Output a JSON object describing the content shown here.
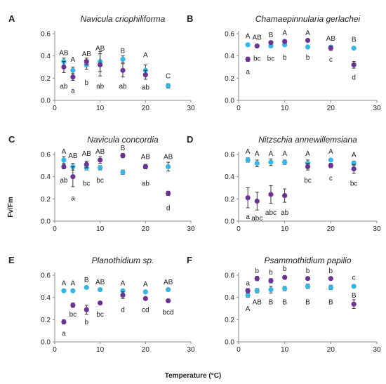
{
  "figure": {
    "y_label": "Fv/Fm",
    "x_label": "Temperature (°C)",
    "colors": {
      "blue": "#35b6e4",
      "purple": "#6a3394",
      "axis": "#888888",
      "text": "#222222"
    }
  },
  "chart_data": [
    {
      "letter": "A",
      "title": "Navicula criophiliforma",
      "type": "scatter",
      "xlim": [
        0,
        30
      ],
      "ylim": [
        0,
        0.6
      ],
      "xticks": [
        "0",
        "10",
        "20",
        "30"
      ],
      "yticks": [
        "0.0",
        "0.2",
        "0.4",
        "0.6"
      ],
      "series": [
        {
          "color": "blue",
          "points": [
            {
              "x": 2,
              "y": 0.35,
              "err": 0.03
            },
            {
              "x": 4,
              "y": 0.27,
              "err": 0.03
            },
            {
              "x": 7,
              "y": 0.32,
              "err": 0.04
            },
            {
              "x": 10,
              "y": 0.35,
              "err": 0.09
            },
            {
              "x": 15,
              "y": 0.37,
              "err": 0.03
            },
            {
              "x": 20,
              "y": 0.27,
              "err": 0.05
            },
            {
              "x": 25,
              "y": 0.13,
              "err": 0.02
            }
          ]
        },
        {
          "color": "purple",
          "points": [
            {
              "x": 2,
              "y": 0.3,
              "err": 0.05
            },
            {
              "x": 4,
              "y": 0.21,
              "err": 0.03
            },
            {
              "x": 7,
              "y": 0.35,
              "err": 0.03
            },
            {
              "x": 10,
              "y": 0.32,
              "err": 0.1
            },
            {
              "x": 15,
              "y": 0.27,
              "err": 0.06
            },
            {
              "x": 20,
              "y": 0.23,
              "err": 0.04
            }
          ]
        }
      ],
      "labels": [
        {
          "x": 2,
          "y": 0.43,
          "text": "AB"
        },
        {
          "x": 4,
          "y": 0.37,
          "text": "A"
        },
        {
          "x": 7,
          "y": 0.42,
          "text": "AB"
        },
        {
          "x": 10,
          "y": 0.47,
          "text": "AB"
        },
        {
          "x": 15,
          "y": 0.45,
          "text": "B"
        },
        {
          "x": 20,
          "y": 0.41,
          "text": "A"
        },
        {
          "x": 25,
          "y": 0.22,
          "text": "C"
        },
        {
          "x": 2,
          "y": 0.13,
          "text": "ab"
        },
        {
          "x": 4,
          "y": 0.09,
          "text": "a"
        },
        {
          "x": 7,
          "y": 0.16,
          "text": "b"
        },
        {
          "x": 10,
          "y": 0.13,
          "text": "ab"
        },
        {
          "x": 15,
          "y": 0.13,
          "text": "ab"
        },
        {
          "x": 20,
          "y": 0.12,
          "text": "ab"
        }
      ]
    },
    {
      "letter": "B",
      "title": "Chamaepinnularia gerlachei",
      "type": "scatter",
      "xlim": [
        0,
        30
      ],
      "ylim": [
        0,
        0.6
      ],
      "xticks": [
        "0",
        "10",
        "20",
        "30"
      ],
      "yticks": [
        "0.0",
        "0.2",
        "0.4",
        "0.6"
      ],
      "series": [
        {
          "color": "blue",
          "points": [
            {
              "x": 2,
              "y": 0.5,
              "err": 0.01
            },
            {
              "x": 4,
              "y": 0.49,
              "err": 0.01
            },
            {
              "x": 7,
              "y": 0.49,
              "err": 0.01
            },
            {
              "x": 10,
              "y": 0.5,
              "err": 0.01
            },
            {
              "x": 15,
              "y": 0.48,
              "err": 0.01
            },
            {
              "x": 20,
              "y": 0.48,
              "err": 0.01
            },
            {
              "x": 25,
              "y": 0.47,
              "err": 0.01
            }
          ]
        },
        {
          "color": "purple",
          "points": [
            {
              "x": 2,
              "y": 0.37,
              "err": 0.02
            },
            {
              "x": 4,
              "y": 0.49,
              "err": 0.01
            },
            {
              "x": 7,
              "y": 0.52,
              "err": 0.01
            },
            {
              "x": 10,
              "y": 0.53,
              "err": 0.01
            },
            {
              "x": 15,
              "y": 0.54,
              "err": 0.01
            },
            {
              "x": 20,
              "y": 0.47,
              "err": 0.02
            },
            {
              "x": 25,
              "y": 0.32,
              "err": 0.03
            }
          ]
        }
      ],
      "labels": [
        {
          "x": 2,
          "y": 0.58,
          "text": "A"
        },
        {
          "x": 4,
          "y": 0.57,
          "text": "AB"
        },
        {
          "x": 7,
          "y": 0.59,
          "text": "B"
        },
        {
          "x": 10,
          "y": 0.61,
          "text": "A"
        },
        {
          "x": 15,
          "y": 0.61,
          "text": "A"
        },
        {
          "x": 20,
          "y": 0.56,
          "text": "AB"
        },
        {
          "x": 25,
          "y": 0.55,
          "text": "B"
        },
        {
          "x": 2,
          "y": 0.26,
          "text": "a"
        },
        {
          "x": 4,
          "y": 0.38,
          "text": "bc"
        },
        {
          "x": 7,
          "y": 0.38,
          "text": "bc"
        },
        {
          "x": 10,
          "y": 0.39,
          "text": "b"
        },
        {
          "x": 15,
          "y": 0.39,
          "text": "b"
        },
        {
          "x": 20,
          "y": 0.37,
          "text": "c"
        },
        {
          "x": 25,
          "y": 0.21,
          "text": "d"
        }
      ]
    },
    {
      "letter": "C",
      "title": "Navicula concordia",
      "type": "scatter",
      "xlim": [
        0,
        30
      ],
      "ylim": [
        0,
        0.6
      ],
      "xticks": [
        "0",
        "10",
        "20",
        "30"
      ],
      "yticks": [
        "0.0",
        "0.2",
        "0.4",
        "0.6"
      ],
      "series": [
        {
          "color": "blue",
          "points": [
            {
              "x": 2,
              "y": 0.55,
              "err": 0.03
            },
            {
              "x": 4,
              "y": 0.49,
              "err": 0.03
            },
            {
              "x": 7,
              "y": 0.48,
              "err": 0.02
            },
            {
              "x": 10,
              "y": 0.48,
              "err": 0.02
            },
            {
              "x": 15,
              "y": 0.44,
              "err": 0.02
            },
            {
              "x": 20,
              "y": 0.49,
              "err": 0.02
            },
            {
              "x": 25,
              "y": 0.49,
              "err": 0.04
            }
          ]
        },
        {
          "color": "purple",
          "points": [
            {
              "x": 2,
              "y": 0.49,
              "err": 0.02
            },
            {
              "x": 4,
              "y": 0.4,
              "err": 0.09
            },
            {
              "x": 7,
              "y": 0.51,
              "err": 0.03
            },
            {
              "x": 10,
              "y": 0.55,
              "err": 0.03
            },
            {
              "x": 15,
              "y": 0.59,
              "err": 0.02
            },
            {
              "x": 20,
              "y": 0.49,
              "err": 0.02
            },
            {
              "x": 25,
              "y": 0.25,
              "err": 0.02
            }
          ]
        }
      ],
      "labels": [
        {
          "x": 2,
          "y": 0.63,
          "text": "A"
        },
        {
          "x": 4,
          "y": 0.59,
          "text": "AB"
        },
        {
          "x": 7,
          "y": 0.61,
          "text": "AB"
        },
        {
          "x": 10,
          "y": 0.63,
          "text": "AB"
        },
        {
          "x": 15,
          "y": 0.66,
          "text": "B"
        },
        {
          "x": 20,
          "y": 0.58,
          "text": "AB"
        },
        {
          "x": 25,
          "y": 0.58,
          "text": "AB"
        },
        {
          "x": 2,
          "y": 0.37,
          "text": "ab"
        },
        {
          "x": 4,
          "y": 0.21,
          "text": "a"
        },
        {
          "x": 7,
          "y": 0.34,
          "text": "bc"
        },
        {
          "x": 10,
          "y": 0.37,
          "text": "bc"
        },
        {
          "x": 20,
          "y": 0.34,
          "text": "ab"
        },
        {
          "x": 25,
          "y": 0.12,
          "text": "d"
        }
      ]
    },
    {
      "letter": "D",
      "title": "Nitzschia annewillemsiana",
      "type": "scatter",
      "xlim": [
        0,
        30
      ],
      "ylim": [
        0,
        0.6
      ],
      "xticks": [
        "0",
        "10",
        "20",
        "30"
      ],
      "yticks": [
        "0.0",
        "0.2",
        "0.4",
        "0.6"
      ],
      "series": [
        {
          "color": "blue",
          "points": [
            {
              "x": 2,
              "y": 0.55,
              "err": 0.02
            },
            {
              "x": 4,
              "y": 0.52,
              "err": 0.03
            },
            {
              "x": 7,
              "y": 0.53,
              "err": 0.03
            },
            {
              "x": 10,
              "y": 0.53,
              "err": 0.02
            },
            {
              "x": 15,
              "y": 0.52,
              "err": 0.03
            },
            {
              "x": 20,
              "y": 0.55,
              "err": 0.01
            },
            {
              "x": 25,
              "y": 0.52,
              "err": 0.02
            }
          ]
        },
        {
          "color": "purple",
          "points": [
            {
              "x": 2,
              "y": 0.21,
              "err": 0.09
            },
            {
              "x": 4,
              "y": 0.18,
              "err": 0.08
            },
            {
              "x": 7,
              "y": 0.24,
              "err": 0.08
            },
            {
              "x": 10,
              "y": 0.23,
              "err": 0.06
            },
            {
              "x": 15,
              "y": 0.49,
              "err": 0.03
            },
            {
              "x": 20,
              "y": 0.5,
              "err": 0.02
            },
            {
              "x": 25,
              "y": 0.47,
              "err": 0.04
            }
          ]
        }
      ],
      "labels": [
        {
          "x": 2,
          "y": 0.63,
          "text": "A"
        },
        {
          "x": 4,
          "y": 0.61,
          "text": "A"
        },
        {
          "x": 7,
          "y": 0.61,
          "text": "A"
        },
        {
          "x": 10,
          "y": 0.61,
          "text": "A"
        },
        {
          "x": 15,
          "y": 0.61,
          "text": "A"
        },
        {
          "x": 20,
          "y": 0.63,
          "text": "A"
        },
        {
          "x": 25,
          "y": 0.6,
          "text": "A"
        },
        {
          "x": 2,
          "y": 0.04,
          "text": "a"
        },
        {
          "x": 4,
          "y": 0.03,
          "text": "abc"
        },
        {
          "x": 7,
          "y": 0.08,
          "text": "abc"
        },
        {
          "x": 10,
          "y": 0.08,
          "text": "ab"
        },
        {
          "x": 15,
          "y": 0.37,
          "text": "bc"
        },
        {
          "x": 20,
          "y": 0.39,
          "text": "c"
        },
        {
          "x": 25,
          "y": 0.34,
          "text": "bc"
        }
      ]
    },
    {
      "letter": "E",
      "title": "Planothidium sp.",
      "type": "scatter",
      "xlim": [
        0,
        30
      ],
      "ylim": [
        0,
        0.6
      ],
      "xticks": [
        "0",
        "10",
        "20",
        "30"
      ],
      "yticks": [
        "0.0",
        "0.2",
        "0.4",
        "0.6"
      ],
      "series": [
        {
          "color": "blue",
          "points": [
            {
              "x": 2,
              "y": 0.46,
              "err": 0.01
            },
            {
              "x": 4,
              "y": 0.46,
              "err": 0.01
            },
            {
              "x": 7,
              "y": 0.49,
              "err": 0.01
            },
            {
              "x": 10,
              "y": 0.47,
              "err": 0.01
            },
            {
              "x": 15,
              "y": 0.46,
              "err": 0.01
            },
            {
              "x": 20,
              "y": 0.45,
              "err": 0.01
            },
            {
              "x": 25,
              "y": 0.47,
              "err": 0.01
            }
          ]
        },
        {
          "color": "purple",
          "points": [
            {
              "x": 2,
              "y": 0.18,
              "err": 0.02
            },
            {
              "x": 4,
              "y": 0.33,
              "err": 0.02
            },
            {
              "x": 7,
              "y": 0.29,
              "err": 0.04
            },
            {
              "x": 10,
              "y": 0.35,
              "err": 0.01
            },
            {
              "x": 15,
              "y": 0.42,
              "err": 0.03
            },
            {
              "x": 20,
              "y": 0.39,
              "err": 0.01
            },
            {
              "x": 25,
              "y": 0.37,
              "err": 0.01
            }
          ]
        }
      ],
      "labels": [
        {
          "x": 2,
          "y": 0.53,
          "text": "A"
        },
        {
          "x": 4,
          "y": 0.53,
          "text": "A"
        },
        {
          "x": 7,
          "y": 0.56,
          "text": "B"
        },
        {
          "x": 10,
          "y": 0.54,
          "text": "AB"
        },
        {
          "x": 15,
          "y": 0.53,
          "text": "A"
        },
        {
          "x": 20,
          "y": 0.52,
          "text": "A"
        },
        {
          "x": 25,
          "y": 0.54,
          "text": "AB"
        },
        {
          "x": 2,
          "y": 0.08,
          "text": "a"
        },
        {
          "x": 4,
          "y": 0.25,
          "text": "bc"
        },
        {
          "x": 7,
          "y": 0.18,
          "text": "b"
        },
        {
          "x": 10,
          "y": 0.25,
          "text": "bc"
        },
        {
          "x": 15,
          "y": 0.29,
          "text": "d"
        },
        {
          "x": 20,
          "y": 0.29,
          "text": "cd"
        },
        {
          "x": 25,
          "y": 0.27,
          "text": "bcd"
        }
      ]
    },
    {
      "letter": "F",
      "title": "Psammothidium papilio",
      "type": "scatter",
      "xlim": [
        0,
        30
      ],
      "ylim": [
        0,
        0.6
      ],
      "xticks": [
        "0",
        "10",
        "20",
        "30"
      ],
      "yticks": [
        "0.0",
        "0.2",
        "0.4",
        "0.6"
      ],
      "series": [
        {
          "color": "blue",
          "points": [
            {
              "x": 2,
              "y": 0.42,
              "err": 0.02
            },
            {
              "x": 4,
              "y": 0.46,
              "err": 0.02
            },
            {
              "x": 7,
              "y": 0.47,
              "err": 0.03
            },
            {
              "x": 10,
              "y": 0.48,
              "err": 0.02
            },
            {
              "x": 15,
              "y": 0.5,
              "err": 0.02
            },
            {
              "x": 20,
              "y": 0.49,
              "err": 0.02
            },
            {
              "x": 25,
              "y": 0.5,
              "err": 0.01
            }
          ]
        },
        {
          "color": "purple",
          "points": [
            {
              "x": 2,
              "y": 0.46,
              "err": 0.02
            },
            {
              "x": 4,
              "y": 0.57,
              "err": 0.02
            },
            {
              "x": 7,
              "y": 0.55,
              "err": 0.02
            },
            {
              "x": 10,
              "y": 0.58,
              "err": 0.01
            },
            {
              "x": 15,
              "y": 0.57,
              "err": 0.01
            },
            {
              "x": 20,
              "y": 0.57,
              "err": 0.01
            },
            {
              "x": 25,
              "y": 0.34,
              "err": 0.04
            }
          ]
        }
      ],
      "labels": [
        {
          "x": 2,
          "y": 0.53,
          "text": "a"
        },
        {
          "x": 4,
          "y": 0.64,
          "text": "b"
        },
        {
          "x": 7,
          "y": 0.63,
          "text": "b"
        },
        {
          "x": 10,
          "y": 0.66,
          "text": "b"
        },
        {
          "x": 15,
          "y": 0.64,
          "text": "b"
        },
        {
          "x": 20,
          "y": 0.64,
          "text": "b"
        },
        {
          "x": 25,
          "y": 0.58,
          "text": "c"
        },
        {
          "x": 2,
          "y": 0.3,
          "text": "A"
        },
        {
          "x": 4,
          "y": 0.36,
          "text": "AB"
        },
        {
          "x": 7,
          "y": 0.36,
          "text": "B"
        },
        {
          "x": 10,
          "y": 0.36,
          "text": "B"
        },
        {
          "x": 15,
          "y": 0.36,
          "text": "B"
        },
        {
          "x": 20,
          "y": 0.36,
          "text": "B"
        },
        {
          "x": 25,
          "y": 0.42,
          "text": "B"
        }
      ]
    }
  ]
}
